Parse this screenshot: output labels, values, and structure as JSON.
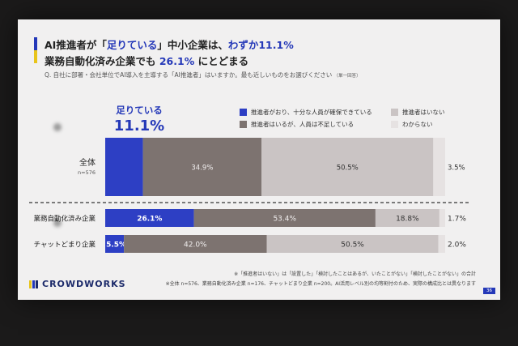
{
  "header": {
    "title_line1_pre": "AI推進者が「",
    "title_line1_hl1": "足りている",
    "title_line1_mid": "」中小企業は、",
    "title_line1_hl2": "わずか11.1%",
    "title_line2_pre": "業務自動化済み企業でも ",
    "title_line2_hl": "26.1%",
    "title_line2_post": " にとどまる",
    "question": "Q. 自社に部署・会社単位でAI導入を主導する「AI推進者」はいますか。最も近しいものをお選びください",
    "question_note": "（単一回答）"
  },
  "callout": {
    "label": "足りている",
    "value": "11.1%"
  },
  "colors": {
    "accent_blue": "#2438b8",
    "accent_yellow": "#e8c41a",
    "logo_navy": "#1c2a6a"
  },
  "chart_data": {
    "type": "bar",
    "orientation": "horizontal-stacked-100",
    "categories": [
      "全体",
      "業務自動化済み企業",
      "チャットどまり企業"
    ],
    "category_notes": [
      "n=576",
      "",
      ""
    ],
    "series": [
      {
        "name": "推進者がおり、十分な人員が確保できている",
        "color": "#2d3fc4",
        "values": [
          11.1,
          26.1,
          5.5
        ],
        "labels": [
          "",
          "26.1%",
          "5.5%"
        ]
      },
      {
        "name": "推進者はいるが、人員は不足している",
        "color": "#7d7370",
        "values": [
          34.9,
          53.4,
          42.0
        ],
        "labels": [
          "34.9%",
          "53.4%",
          "42.0%"
        ]
      },
      {
        "name": "推進者はいない",
        "color": "#cac4c4",
        "values": [
          50.5,
          18.8,
          50.5
        ],
        "labels": [
          "50.5%",
          "18.8%",
          "50.5%"
        ]
      },
      {
        "name": "わからない",
        "color": "#e6e2e2",
        "values": [
          3.5,
          1.7,
          2.0
        ],
        "labels": [
          "3.5%",
          "1.7%",
          "2.0%"
        ]
      }
    ]
  },
  "footer": {
    "logo": "CROWDWORKS",
    "note1": "※「推進者はいない」は「設置した」「検討したことはあるが、いたことがない」「検討したことがない」の合計",
    "note2": "※全体 n=576、業務自動化済み企業 n=176、チャットどまり企業 n=200。AI活用レベル別の均等割付のため、実際の構成比とは異なります",
    "page": "36"
  }
}
